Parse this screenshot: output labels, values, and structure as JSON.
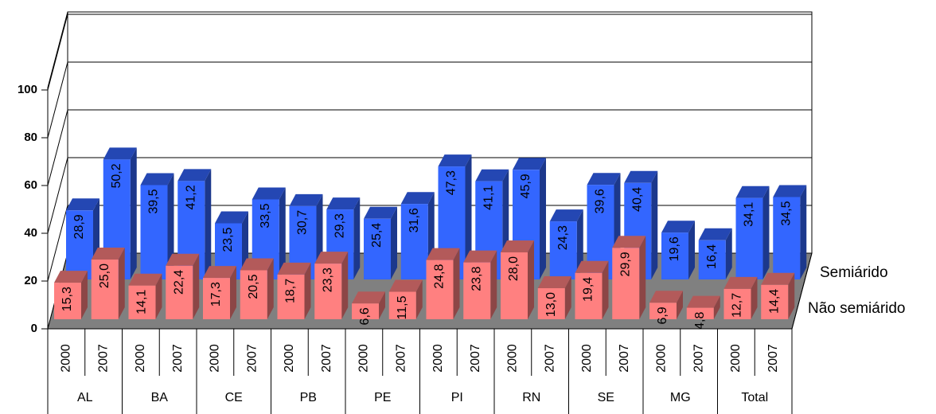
{
  "chart_data": {
    "type": "bar3d",
    "groups": [
      "AL",
      "BA",
      "CE",
      "PB",
      "PE",
      "PI",
      "RN",
      "SE",
      "MG",
      "Total"
    ],
    "categories": [
      "2000",
      "2007",
      "2000",
      "2007",
      "2000",
      "2007",
      "2000",
      "2007",
      "2000",
      "2007",
      "2000",
      "2007",
      "2000",
      "2007",
      "2000",
      "2007",
      "2000",
      "2007",
      "2000",
      "2007"
    ],
    "series": [
      {
        "name": "Semiárido",
        "color": "#3366ff",
        "values": [
          28.9,
          50.2,
          39.5,
          41.2,
          23.5,
          33.5,
          30.7,
          29.3,
          25.4,
          31.6,
          47.3,
          41.1,
          45.9,
          24.3,
          39.6,
          40.4,
          19.6,
          16.4,
          34.1,
          34.5
        ],
        "value_labels": [
          "28,9",
          "50,2",
          "39,5",
          "41,2",
          "23,5",
          "33,5",
          "30,7",
          "29,3",
          "25,4",
          "31,6",
          "47,3",
          "41,1",
          "45,9",
          "24,3",
          "39,6",
          "40,4",
          "19,6",
          "16,4",
          "34,1",
          "34,5"
        ]
      },
      {
        "name": "Não semiárido",
        "color": "#ff8080",
        "values": [
          15.3,
          25.0,
          14.1,
          22.4,
          17.3,
          20.5,
          18.7,
          23.3,
          6.6,
          11.5,
          24.8,
          23.8,
          28.0,
          13.0,
          19.4,
          29.9,
          6.9,
          4.8,
          12.7,
          14.4
        ],
        "value_labels": [
          "15,3",
          "25,0",
          "14,1",
          "22,4",
          "17,3",
          "20,5",
          "18,7",
          "23,3",
          "6,6",
          "11,5",
          "24,8",
          "23,8",
          "28,0",
          "13,0",
          "19,4",
          "29,9",
          "6,9",
          "4,8",
          "12,7",
          "14,4"
        ]
      }
    ],
    "ylim": [
      0,
      100
    ],
    "yticks": [
      0,
      20,
      40,
      60,
      80,
      100
    ],
    "grid": true
  }
}
